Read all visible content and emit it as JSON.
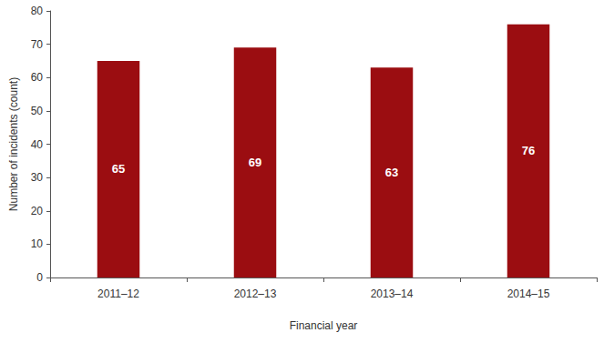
{
  "chart_data": {
    "type": "bar",
    "x_label": "Financial year",
    "y_label": "Number of incidents (count)",
    "categories": [
      "2011–12",
      "2012–13",
      "2013–14",
      "2014–15"
    ],
    "values": [
      65,
      69,
      63,
      76
    ],
    "color": "#9b0d11",
    "ylim": [
      0,
      80
    ],
    "yticks": [
      0,
      10,
      20,
      30,
      40,
      50,
      60,
      70,
      80
    ],
    "grid": false,
    "data_labels": true
  }
}
